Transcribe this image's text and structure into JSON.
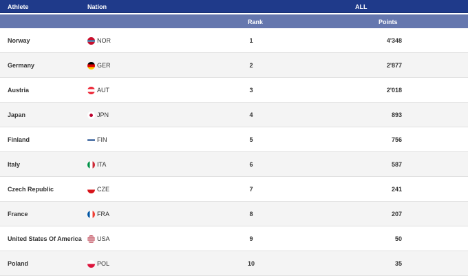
{
  "header": {
    "athlete": "Athlete",
    "nation": "Nation",
    "group": "ALL",
    "rank": "Rank",
    "points": "Points"
  },
  "rows": [
    {
      "athlete": "Norway",
      "code": "NOR",
      "rank": "1",
      "points": "4'348",
      "flag": "linear-gradient(#c8102e 38%,#fff 38%,#fff 42%,#002868 42%,#002868 58%,#fff 58%,#fff 62%,#c8102e 62%)"
    },
    {
      "athlete": "Germany",
      "code": "GER",
      "rank": "2",
      "points": "2'877",
      "flag": "linear-gradient(#000 33%,#dd0000 33%,#dd0000 66%,#ffce00 66%)"
    },
    {
      "athlete": "Austria",
      "code": "AUT",
      "rank": "3",
      "points": "2'018",
      "flag": "linear-gradient(#ed2939 33%,#fff 33%,#fff 66%,#ed2939 66%)"
    },
    {
      "athlete": "Japan",
      "code": "JPN",
      "rank": "4",
      "points": "893",
      "flag": "radial-gradient(circle,#bc002d 30%,#fff 32%)"
    },
    {
      "athlete": "Finland",
      "code": "FIN",
      "rank": "5",
      "points": "756",
      "flag": "linear-gradient(#fff 40%,#003580 40%,#003580 60%,#fff 60%)"
    },
    {
      "athlete": "Italy",
      "code": "ITA",
      "rank": "6",
      "points": "587",
      "flag": "linear-gradient(90deg,#009246 33%,#fff 33%,#fff 66%,#ce2b37 66%)"
    },
    {
      "athlete": "Czech Republic",
      "code": "CZE",
      "rank": "7",
      "points": "241",
      "flag": "linear-gradient(#fff 50%,#d7141a 50%)"
    },
    {
      "athlete": "France",
      "code": "FRA",
      "rank": "8",
      "points": "207",
      "flag": "linear-gradient(90deg,#0055a4 33%,#fff 33%,#fff 66%,#ef4135 66%)"
    },
    {
      "athlete": "United States Of America",
      "code": "USA",
      "rank": "9",
      "points": "50",
      "flag": "repeating-linear-gradient(#b22234 0 1.5px,#fff 1.5px 3px)"
    },
    {
      "athlete": "Poland",
      "code": "POL",
      "rank": "10",
      "points": "35",
      "flag": "linear-gradient(#fff 50%,#dc143c 50%)"
    }
  ],
  "colors": {
    "header": "#1f3a8a",
    "subheader": "#6577ae",
    "alt_row": "#f4f4f4"
  }
}
